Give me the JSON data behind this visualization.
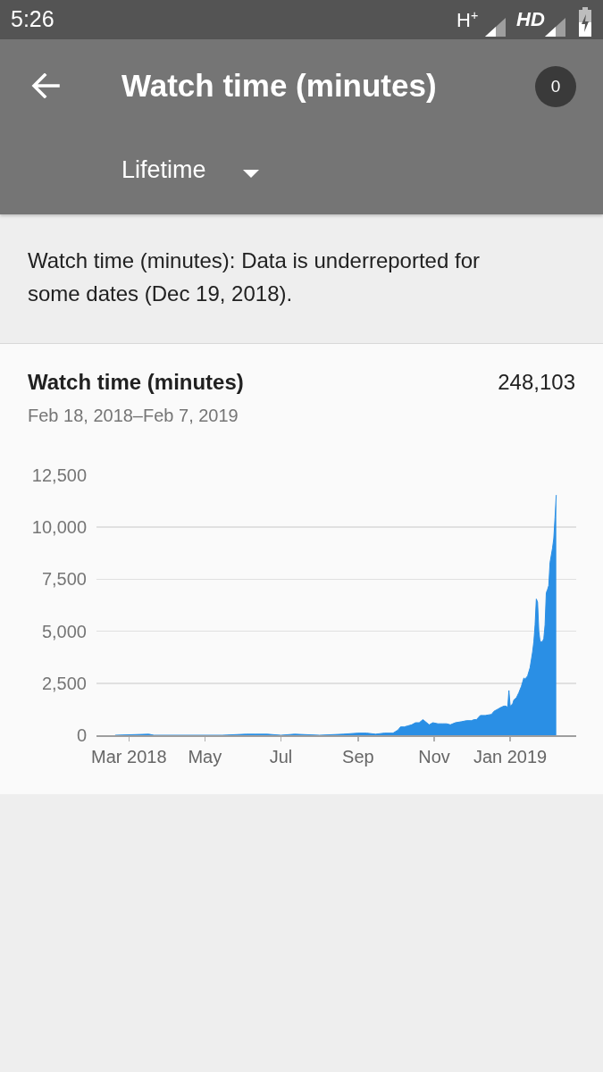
{
  "chart_data": {
    "type": "area",
    "title": "Watch time (minutes)",
    "subtitle": "Feb 18, 2018–Feb 7, 2019",
    "annotations": [
      "5:26",
      "H$^{+}$",
      "HD",
      "Watch time (minutes)",
      "0",
      "Lifetime",
      "Watch time (minutes): Data is underreported for some dates (Dec 19, 2018).",
      "248,103"
    ],
    "x": [
      "2018-02-18",
      "2018-03-17",
      "2018-03-21",
      "2018-04-15",
      "2018-05-15",
      "2018-06-03",
      "2018-06-10",
      "2018-06-20",
      "2018-07-01",
      "2018-07-12",
      "2018-08-01",
      "2018-08-20",
      "2018-09-01",
      "2018-09-08",
      "2018-09-15",
      "2018-09-22",
      "2018-09-29",
      "2018-10-03",
      "2018-10-05",
      "2018-10-08",
      "2018-10-11",
      "2018-10-14",
      "2018-10-17",
      "2018-10-20",
      "2018-10-23",
      "2018-10-25",
      "2018-10-28",
      "2018-10-31",
      "2018-11-04",
      "2018-11-08",
      "2018-11-11",
      "2018-11-14",
      "2018-11-18",
      "2018-11-23",
      "2018-11-27",
      "2018-12-01",
      "2018-12-03",
      "2018-12-05",
      "2018-12-08",
      "2018-12-12",
      "2018-12-17",
      "2018-12-19",
      "2018-12-22",
      "2018-12-25",
      "2018-12-27",
      "2018-12-29",
      "2018-12-30",
      "2018-12-31",
      "2019-01-01",
      "2019-01-03",
      "2019-01-04",
      "2019-01-06",
      "2019-01-08",
      "2019-01-10",
      "2019-01-12",
      "2019-01-13",
      "2019-01-15",
      "2019-01-17",
      "2019-01-19",
      "2019-01-20",
      "2019-01-21",
      "2019-01-22",
      "2019-01-23",
      "2019-01-24",
      "2019-01-25",
      "2019-01-27",
      "2019-01-28",
      "2019-01-29",
      "2019-01-30",
      "2019-01-31",
      "2019-02-01",
      "2019-02-02",
      "2019-02-04",
      "2019-02-05",
      "2019-02-06",
      "2019-02-07"
    ],
    "values": [
      0,
      50,
      0,
      0,
      0,
      50,
      50,
      50,
      0,
      50,
      0,
      50,
      100,
      100,
      50,
      100,
      100,
      250,
      400,
      400,
      450,
      500,
      600,
      600,
      750,
      650,
      500,
      600,
      550,
      550,
      550,
      500,
      600,
      650,
      700,
      700,
      750,
      750,
      950,
      950,
      1000,
      1150,
      1250,
      1350,
      1400,
      1400,
      1300,
      2150,
      1400,
      1500,
      1700,
      1800,
      2050,
      2350,
      2750,
      2700,
      2850,
      3250,
      4000,
      4500,
      5300,
      6550,
      6400,
      5000,
      4500,
      4500,
      4650,
      5300,
      6850,
      7000,
      7200,
      8300,
      9000,
      9450,
      10450,
      11550
    ],
    "color": "#2a8fe5",
    "xlim": [
      "2018-02-03",
      "2019-02-23"
    ],
    "xticks": [
      {
        "value": "2018-03-01",
        "label": "Mar 2018"
      },
      {
        "value": "2018-05-01",
        "label": "May"
      },
      {
        "value": "2018-07-01",
        "label": "Jul"
      },
      {
        "value": "2018-09-01",
        "label": "Sep"
      },
      {
        "value": "2018-11-01",
        "label": "Nov"
      },
      {
        "value": "2019-01-01",
        "label": "Jan 2019"
      }
    ],
    "ylim": [
      0,
      12500
    ],
    "yticks": [
      0,
      {
        "value": 2500,
        "label": "2,500"
      },
      {
        "value": 5000,
        "label": "5,000"
      },
      {
        "value": 7500,
        "label": "7,500"
      },
      {
        "value": 10000,
        "label": "10,000"
      },
      {
        "value": 12500,
        "label": "12,500"
      }
    ],
    "grid": "y"
  }
}
